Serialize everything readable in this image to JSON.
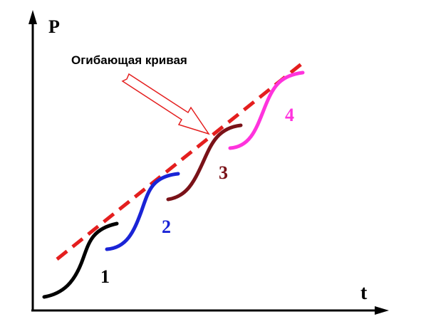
{
  "axes": {
    "y_label": "P",
    "x_label": "t",
    "color": "#000000"
  },
  "envelope": {
    "label": "Огибающая кривая",
    "color": "#e41e1e",
    "callout_arrow_color": "#e41e1e"
  },
  "curves": [
    {
      "label": "1",
      "color": "#000000"
    },
    {
      "label": "2",
      "color": "#1a24d6"
    },
    {
      "label": "3",
      "color": "#7a1218"
    },
    {
      "label": "4",
      "color": "#ff33dd"
    }
  ]
}
